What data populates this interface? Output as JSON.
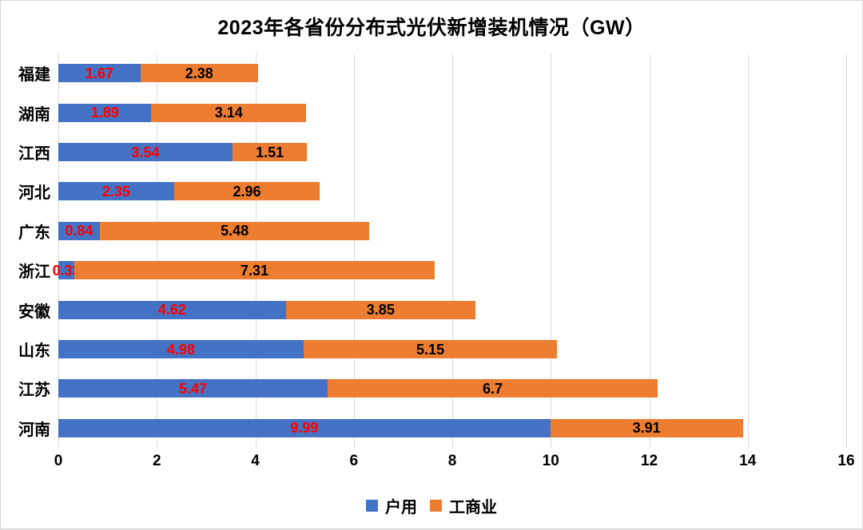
{
  "title": "2023年各省份分布式光伏新增装机情况（GW）",
  "colors": {
    "household_bar": "#4472C4",
    "commercial_bar": "#ED7D31",
    "household_value_label": "#FF0000",
    "commercial_value_label": "#000000",
    "gridline": "#D9D9D9",
    "text": "#000000",
    "background": "#FFFFFF"
  },
  "chart_data": {
    "type": "bar",
    "orientation": "horizontal",
    "stacked": true,
    "title": "2023年各省份分布式光伏新增装机情况（GW）",
    "categories": [
      "福建",
      "湖南",
      "江西",
      "河北",
      "广东",
      "浙江",
      "安徽",
      "山东",
      "江苏",
      "河南"
    ],
    "series": [
      {
        "key": "household",
        "name": "户用",
        "color": "#4472C4",
        "label_color": "#FF0000",
        "values": [
          1.67,
          1.89,
          3.54,
          2.35,
          0.84,
          0.33,
          4.62,
          4.98,
          5.47,
          9.99
        ],
        "value_labels": [
          "1.67",
          "1.89",
          "3.54",
          "2.35",
          "0.84",
          "0.33",
          "4.62",
          "4.98",
          "5.47",
          "9.99"
        ]
      },
      {
        "key": "commercial-industrial",
        "name": "工商业",
        "color": "#ED7D31",
        "label_color": "#000000",
        "values": [
          2.38,
          3.14,
          1.51,
          2.96,
          5.48,
          7.31,
          3.85,
          5.15,
          6.7,
          3.91
        ],
        "value_labels": [
          "2.38",
          "3.14",
          "1.51",
          "2.96",
          "5.48",
          "7.31",
          "3.85",
          "5.15",
          "6.7",
          "3.91"
        ]
      }
    ],
    "totals": [
      4.05,
      5.03,
      5.05,
      5.31,
      6.32,
      7.64,
      8.47,
      10.13,
      12.17,
      13.9
    ],
    "xlabel": "",
    "ylabel": "",
    "xlim": [
      0,
      16
    ],
    "x_ticks": [
      0,
      2,
      4,
      6,
      8,
      10,
      12,
      14,
      16
    ],
    "grid": true,
    "legend_position": "bottom"
  }
}
